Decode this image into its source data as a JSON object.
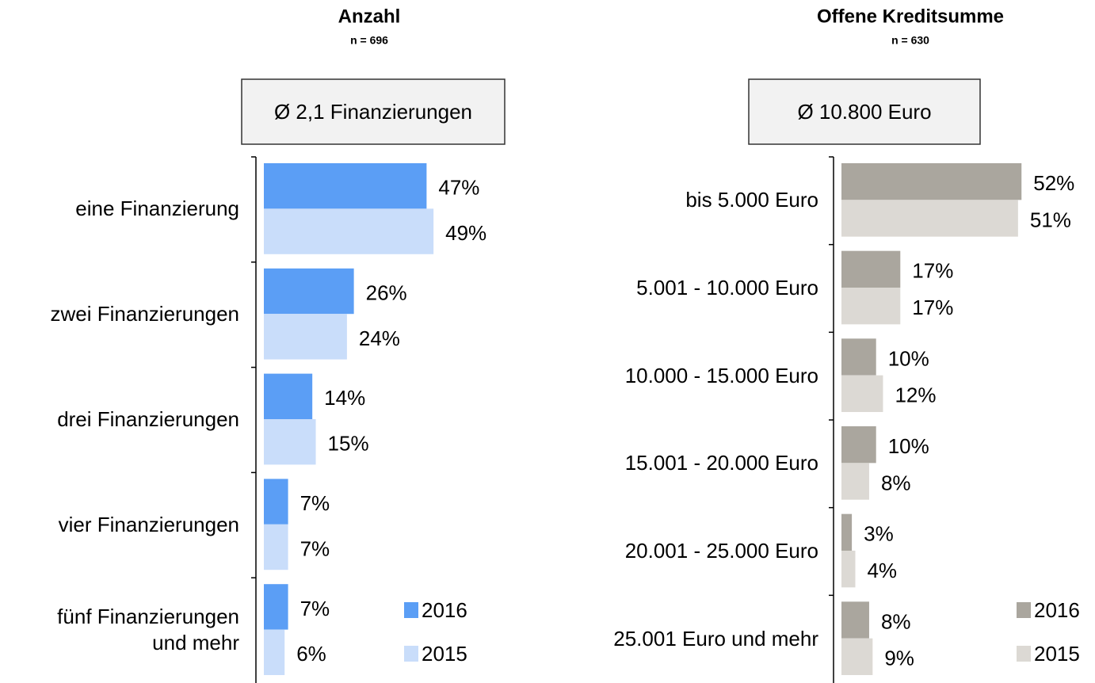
{
  "chart_data": [
    {
      "type": "bar",
      "orientation": "horizontal",
      "title": "Anzahl",
      "subtitle": "n = 696",
      "annotation": "Ø 2,1 Finanzierungen",
      "categories": [
        "eine Finanzierung",
        "zwei Finanzierungen",
        "drei Finanzierungen",
        "vier Finanzierungen",
        "fünf Finanzierungen\nund mehr"
      ],
      "series": [
        {
          "name": "2016",
          "color": "#5b9ef5",
          "values": [
            47,
            26,
            14,
            7,
            7
          ],
          "value_labels": [
            "47%",
            "26%",
            "14%",
            "7%",
            "7%"
          ]
        },
        {
          "name": "2015",
          "color": "#c9ddfa",
          "values": [
            49,
            24,
            15,
            7,
            6
          ],
          "value_labels": [
            "49%",
            "24%",
            "15%",
            "7%",
            "6%"
          ]
        }
      ]
    },
    {
      "type": "bar",
      "orientation": "horizontal",
      "title": "Offene Kreditsumme",
      "subtitle": "n = 630",
      "annotation": "Ø 10.800 Euro",
      "categories": [
        "bis 5.000 Euro",
        "5.001 - 10.000 Euro",
        "10.000 - 15.000 Euro",
        "15.001 - 20.000 Euro",
        "20.001 - 25.000 Euro",
        "25.001 Euro und mehr"
      ],
      "series": [
        {
          "name": "2016",
          "color": "#aaa69e",
          "values": [
            52,
            17,
            10,
            10,
            3,
            8
          ],
          "value_labels": [
            "52%",
            "17%",
            "10%",
            "10%",
            "3%",
            "8%"
          ]
        },
        {
          "name": "2015",
          "color": "#dcd9d4",
          "values": [
            51,
            17,
            12,
            8,
            4,
            9
          ],
          "value_labels": [
            "51%",
            "17%",
            "12%",
            "8%",
            "4%",
            "9%"
          ]
        }
      ]
    }
  ]
}
